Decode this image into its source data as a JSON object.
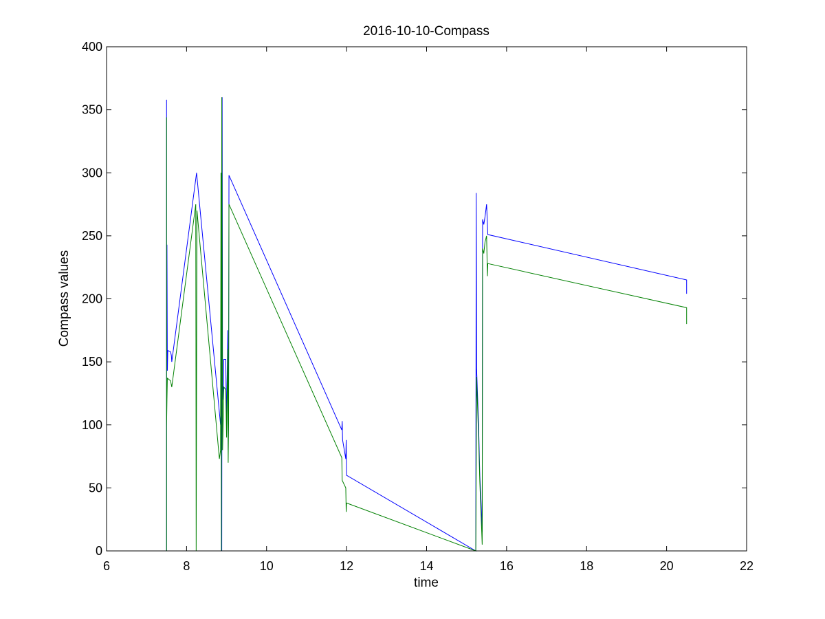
{
  "chart_data": {
    "type": "line",
    "title": "2016-10-10-Compass",
    "xlabel": "time",
    "ylabel": "Compass values",
    "xlim": [
      6,
      22
    ],
    "ylim": [
      0,
      400
    ],
    "xticks": [
      6,
      8,
      10,
      12,
      14,
      16,
      18,
      20,
      22
    ],
    "yticks": [
      0,
      50,
      100,
      150,
      200,
      250,
      300,
      350,
      400
    ],
    "grid": false,
    "legend": "none",
    "series": [
      {
        "color": "#0000ff",
        "points": [
          [
            7.5,
            0
          ],
          [
            7.5,
            358
          ],
          [
            7.5,
            215
          ],
          [
            7.51,
            243
          ],
          [
            7.52,
            143
          ],
          [
            7.53,
            159
          ],
          [
            7.6,
            158
          ],
          [
            7.62,
            155
          ],
          [
            7.63,
            150
          ],
          [
            8.25,
            300
          ],
          [
            8.85,
            100
          ],
          [
            8.86,
            110
          ],
          [
            8.87,
            300
          ],
          [
            8.88,
            0
          ],
          [
            8.89,
            360
          ],
          [
            8.9,
            120
          ],
          [
            8.92,
            133
          ],
          [
            8.93,
            152
          ],
          [
            8.98,
            152
          ],
          [
            9.0,
            100
          ],
          [
            9.03,
            175
          ],
          [
            9.04,
            80
          ],
          [
            9.05,
            120
          ],
          [
            9.06,
            298
          ],
          [
            11.88,
            96
          ],
          [
            11.89,
            103
          ],
          [
            11.9,
            88
          ],
          [
            11.98,
            73
          ],
          [
            11.99,
            88
          ],
          [
            12.0,
            60
          ],
          [
            15.23,
            0
          ],
          [
            15.24,
            284
          ],
          [
            15.25,
            145
          ],
          [
            15.3,
            100
          ],
          [
            15.33,
            60
          ],
          [
            15.36,
            40
          ],
          [
            15.39,
            15
          ],
          [
            15.4,
            263
          ],
          [
            15.43,
            259
          ],
          [
            15.46,
            265
          ],
          [
            15.5,
            275
          ],
          [
            15.53,
            251
          ],
          [
            20.5,
            215
          ],
          [
            20.5,
            204
          ]
        ]
      },
      {
        "color": "#008000",
        "points": [
          [
            7.5,
            0
          ],
          [
            7.5,
            344
          ],
          [
            7.5,
            98
          ],
          [
            7.51,
            120
          ],
          [
            7.52,
            137
          ],
          [
            7.6,
            135
          ],
          [
            7.63,
            130
          ],
          [
            8.23,
            275
          ],
          [
            8.24,
            0
          ],
          [
            8.26,
            270
          ],
          [
            8.82,
            73
          ],
          [
            8.85,
            80
          ],
          [
            8.86,
            300
          ],
          [
            8.87,
            0
          ],
          [
            8.88,
            360
          ],
          [
            8.9,
            80
          ],
          [
            8.92,
            110
          ],
          [
            8.93,
            130
          ],
          [
            8.98,
            128
          ],
          [
            9.0,
            90
          ],
          [
            9.03,
            160
          ],
          [
            9.04,
            70
          ],
          [
            9.05,
            100
          ],
          [
            9.06,
            275
          ],
          [
            11.88,
            74
          ],
          [
            11.89,
            56
          ],
          [
            11.98,
            50
          ],
          [
            11.99,
            31
          ],
          [
            12.0,
            38
          ],
          [
            15.23,
            0
          ],
          [
            15.25,
            138
          ],
          [
            15.3,
            90
          ],
          [
            15.33,
            55
          ],
          [
            15.36,
            30
          ],
          [
            15.39,
            5
          ],
          [
            15.4,
            240
          ],
          [
            15.43,
            236
          ],
          [
            15.46,
            245
          ],
          [
            15.5,
            250
          ],
          [
            15.52,
            218
          ],
          [
            15.53,
            228
          ],
          [
            20.5,
            193
          ],
          [
            20.5,
            180
          ]
        ]
      }
    ]
  }
}
